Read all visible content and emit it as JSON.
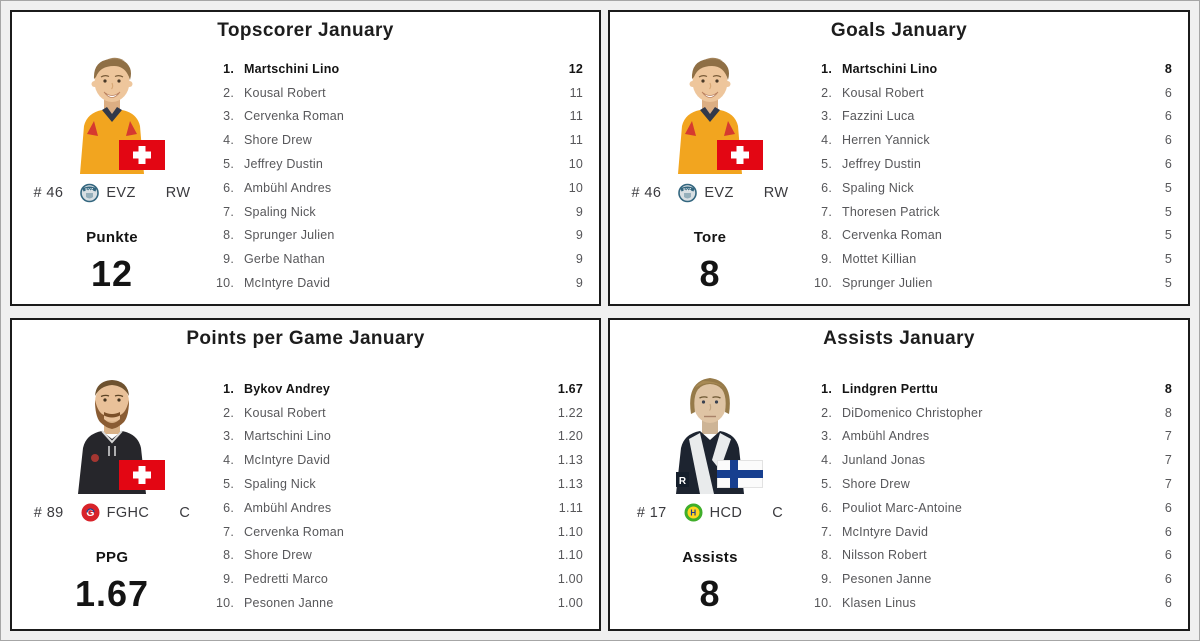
{
  "colors": {
    "bar": "#c4c4c4",
    "panel_border": "#1b1b1b",
    "background": "#f0f0f0",
    "text_gray": "#57575a",
    "text_dark": "#141414",
    "swiss_flag_red": "#e30613",
    "finland_flag_blue": "#173f8f"
  },
  "panels": [
    {
      "title": "Topscorer January",
      "player": {
        "number": "# 46",
        "team": "EVZ",
        "position": "RW",
        "stat_label": "Punkte",
        "stat_value": "12"
      },
      "max_value": 12,
      "rows": [
        {
          "rank": "1.",
          "name": "Martschini Lino",
          "value": "12",
          "v": 12
        },
        {
          "rank": "2.",
          "name": "Kousal Robert",
          "value": "11",
          "v": 11
        },
        {
          "rank": "3.",
          "name": "Cervenka Roman",
          "value": "11",
          "v": 11
        },
        {
          "rank": "4.",
          "name": "Shore Drew",
          "value": "11",
          "v": 11
        },
        {
          "rank": "5.",
          "name": "Jeffrey Dustin",
          "value": "10",
          "v": 10
        },
        {
          "rank": "6.",
          "name": "Ambühl Andres",
          "value": "10",
          "v": 10
        },
        {
          "rank": "7.",
          "name": "Spaling Nick",
          "value": "9",
          "v": 9
        },
        {
          "rank": "8.",
          "name": "Sprunger Julien",
          "value": "9",
          "v": 9
        },
        {
          "rank": "9.",
          "name": "Gerbe Nathan",
          "value": "9",
          "v": 9
        },
        {
          "rank": "10.",
          "name": "McIntyre David",
          "value": "9",
          "v": 9
        }
      ]
    },
    {
      "title": "Goals January",
      "player": {
        "number": "# 46",
        "team": "EVZ",
        "position": "RW",
        "stat_label": "Tore",
        "stat_value": "8"
      },
      "max_value": 8,
      "rows": [
        {
          "rank": "1.",
          "name": "Martschini Lino",
          "value": "8",
          "v": 8
        },
        {
          "rank": "2.",
          "name": "Kousal Robert",
          "value": "6",
          "v": 6
        },
        {
          "rank": "3.",
          "name": "Fazzini Luca",
          "value": "6",
          "v": 6
        },
        {
          "rank": "4.",
          "name": "Herren Yannick",
          "value": "6",
          "v": 6
        },
        {
          "rank": "5.",
          "name": "Jeffrey Dustin",
          "value": "6",
          "v": 6
        },
        {
          "rank": "6.",
          "name": "Spaling Nick",
          "value": "5",
          "v": 5
        },
        {
          "rank": "7.",
          "name": "Thoresen Patrick",
          "value": "5",
          "v": 5
        },
        {
          "rank": "8.",
          "name": "Cervenka Roman",
          "value": "5",
          "v": 5
        },
        {
          "rank": "9.",
          "name": "Mottet Killian",
          "value": "5",
          "v": 5
        },
        {
          "rank": "10.",
          "name": "Sprunger Julien",
          "value": "5",
          "v": 5
        }
      ]
    },
    {
      "title": "Points per Game January",
      "player": {
        "number": "# 89",
        "team": "FGHC",
        "position": "C",
        "stat_label": "PPG",
        "stat_value": "1.67"
      },
      "max_value": 1.67,
      "rows": [
        {
          "rank": "1.",
          "name": "Bykov Andrey",
          "value": "1.67",
          "v": 1.67
        },
        {
          "rank": "2.",
          "name": "Kousal Robert",
          "value": "1.22",
          "v": 1.22
        },
        {
          "rank": "3.",
          "name": "Martschini Lino",
          "value": "1.20",
          "v": 1.2
        },
        {
          "rank": "4.",
          "name": "McIntyre David",
          "value": "1.13",
          "v": 1.13
        },
        {
          "rank": "5.",
          "name": "Spaling Nick",
          "value": "1.13",
          "v": 1.13
        },
        {
          "rank": "6.",
          "name": "Ambühl Andres",
          "value": "1.11",
          "v": 1.11
        },
        {
          "rank": "7.",
          "name": "Cervenka Roman",
          "value": "1.10",
          "v": 1.1
        },
        {
          "rank": "8.",
          "name": "Shore Drew",
          "value": "1.10",
          "v": 1.1
        },
        {
          "rank": "9.",
          "name": "Pedretti Marco",
          "value": "1.00",
          "v": 1.0
        },
        {
          "rank": "10.",
          "name": "Pesonen Janne",
          "value": "1.00",
          "v": 1.0
        }
      ]
    },
    {
      "title": "Assists January",
      "player": {
        "number": "# 17",
        "team": "HCD",
        "position": "C",
        "stat_label": "Assists",
        "stat_value": "8"
      },
      "max_value": 8,
      "rows": [
        {
          "rank": "1.",
          "name": "Lindgren Perttu",
          "value": "8",
          "v": 8
        },
        {
          "rank": "2.",
          "name": "DiDomenico Christopher",
          "value": "8",
          "v": 8
        },
        {
          "rank": "3.",
          "name": "Ambühl Andres",
          "value": "7",
          "v": 7
        },
        {
          "rank": "4.",
          "name": "Junland Jonas",
          "value": "7",
          "v": 7
        },
        {
          "rank": "5.",
          "name": "Shore Drew",
          "value": "7",
          "v": 7
        },
        {
          "rank": "6.",
          "name": "Pouliot Marc-Antoine",
          "value": "6",
          "v": 6
        },
        {
          "rank": "7.",
          "name": "McIntyre David",
          "value": "6",
          "v": 6
        },
        {
          "rank": "8.",
          "name": "Nilsson Robert",
          "value": "6",
          "v": 6
        },
        {
          "rank": "9.",
          "name": "Pesonen Janne",
          "value": "6",
          "v": 6
        },
        {
          "rank": "10.",
          "name": "Klasen Linus",
          "value": "6",
          "v": 6
        }
      ]
    }
  ],
  "chart_data": [
    {
      "type": "bar",
      "orientation": "horizontal",
      "title": "Topscorer January",
      "categories": [
        "Martschini Lino",
        "Kousal Robert",
        "Cervenka Roman",
        "Shore Drew",
        "Jeffrey Dustin",
        "Ambühl Andres",
        "Spaling Nick",
        "Sprunger Julien",
        "Gerbe Nathan",
        "McIntyre David"
      ],
      "values": [
        12,
        11,
        11,
        11,
        10,
        10,
        9,
        9,
        9,
        9
      ],
      "xlim": [
        0,
        12
      ],
      "bar_color": "#c4c4c4",
      "highlight_first_row": true,
      "unit_label": "Punkte"
    },
    {
      "type": "bar",
      "orientation": "horizontal",
      "title": "Goals January",
      "categories": [
        "Martschini Lino",
        "Kousal Robert",
        "Fazzini Luca",
        "Herren Yannick",
        "Jeffrey Dustin",
        "Spaling Nick",
        "Thoresen Patrick",
        "Cervenka Roman",
        "Mottet Killian",
        "Sprunger Julien"
      ],
      "values": [
        8,
        6,
        6,
        6,
        6,
        5,
        5,
        5,
        5,
        5
      ],
      "xlim": [
        0,
        8
      ],
      "bar_color": "#c4c4c4",
      "highlight_first_row": true,
      "unit_label": "Tore"
    },
    {
      "type": "bar",
      "orientation": "horizontal",
      "title": "Points per Game January",
      "categories": [
        "Bykov Andrey",
        "Kousal Robert",
        "Martschini Lino",
        "McIntyre David",
        "Spaling Nick",
        "Ambühl Andres",
        "Cervenka Roman",
        "Shore Drew",
        "Pedretti Marco",
        "Pesonen Janne"
      ],
      "values": [
        1.67,
        1.22,
        1.2,
        1.13,
        1.13,
        1.11,
        1.1,
        1.1,
        1.0,
        1.0
      ],
      "xlim": [
        0,
        1.67
      ],
      "bar_color": "#c4c4c4",
      "highlight_first_row": true,
      "unit_label": "PPG"
    },
    {
      "type": "bar",
      "orientation": "horizontal",
      "title": "Assists January",
      "categories": [
        "Lindgren Perttu",
        "DiDomenico Christopher",
        "Ambühl Andres",
        "Junland Jonas",
        "Shore Drew",
        "Pouliot Marc-Antoine",
        "McIntyre David",
        "Nilsson Robert",
        "Pesonen Janne",
        "Klasen Linus"
      ],
      "values": [
        8,
        8,
        7,
        7,
        7,
        6,
        6,
        6,
        6,
        6
      ],
      "xlim": [
        0,
        8
      ],
      "bar_color": "#c4c4c4",
      "highlight_first_row": true,
      "unit_label": "Assists"
    }
  ]
}
